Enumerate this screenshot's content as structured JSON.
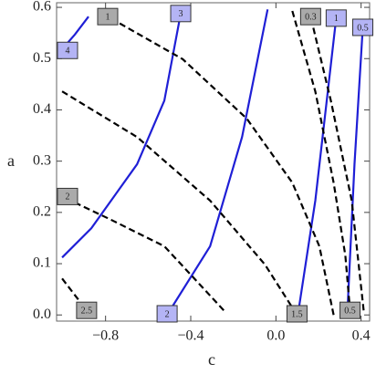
{
  "chart_data": {
    "type": "line",
    "xlabel": "c",
    "ylabel": "a",
    "xlim": [
      -1.03,
      0.44
    ],
    "ylim": [
      -0.012,
      0.609
    ],
    "xticks": [
      {
        "value": -0.8,
        "label": "−0.8"
      },
      {
        "value": -0.4,
        "label": "−0.4"
      },
      {
        "value": 0.0,
        "label": "0.0"
      },
      {
        "value": 0.4,
        "label": "0.4"
      }
    ],
    "yticks": [
      {
        "value": 0.0,
        "label": "0.0"
      },
      {
        "value": 0.1,
        "label": "0.1"
      },
      {
        "value": 0.2,
        "label": "0.2"
      },
      {
        "value": 0.3,
        "label": "0.3"
      },
      {
        "value": 0.4,
        "label": "0.4"
      },
      {
        "value": 0.5,
        "label": "0.5"
      },
      {
        "value": 0.6,
        "label": "0.6"
      }
    ],
    "series": [
      {
        "name": "4",
        "color": "#1f1fd6",
        "box_color": "#b4b4f5",
        "dashed": false,
        "x": [
          -0.88,
          -0.944,
          -1.009
        ],
        "values": [
          0.582,
          0.547,
          0.516
        ]
      },
      {
        "name": "3",
        "color": "#1f1fd6",
        "box_color": "#b4b4f5",
        "dashed": false,
        "x": [
          -1.004,
          -0.867,
          -0.652,
          -0.524,
          -0.447
        ],
        "values": [
          0.112,
          0.169,
          0.294,
          0.418,
          0.588
        ]
      },
      {
        "name": "2",
        "color": "#1f1fd6",
        "box_color": "#b4b4f5",
        "dashed": false,
        "x": [
          -0.039,
          -0.159,
          -0.309,
          -0.511
        ],
        "values": [
          0.596,
          0.347,
          0.134,
          0
        ]
      },
      {
        "name": "1",
        "color": "#1f1fd6",
        "box_color": "#b4b4f5",
        "dashed": false,
        "x": [
          0.103,
          0.185,
          0.283
        ],
        "values": [
          0,
          0.223,
          0.579
        ]
      },
      {
        "name": "0.5",
        "color": "#1f1fd6",
        "box_color": "#b4b4f5",
        "dashed": false,
        "x": [
          0.335,
          0.369,
          0.408
        ],
        "values": [
          0,
          0.294,
          0.561
        ]
      },
      {
        "name": "1",
        "color": "#000000",
        "box_color": "#aaaaaa",
        "dashed": true,
        "x": [
          0.271,
          0.204,
          0.077,
          -0.137,
          -0.438,
          -0.79
        ],
        "values": [
          0,
          0.134,
          0.258,
          0.383,
          0.499,
          0.582
        ]
      },
      {
        "name": "0.5",
        "color": "#000000",
        "box_color": "#aaaaaa",
        "dashed": true,
        "x": [
          0.077,
          0.185,
          0.271,
          0.326,
          0.348
        ],
        "values": [
          0.593,
          0.436,
          0.258,
          0.116,
          0.009
        ]
      },
      {
        "name": "0.3",
        "color": "#000000",
        "box_color": "#aaaaaa",
        "dashed": true,
        "x": [
          0.412,
          0.356,
          0.258,
          0.163
        ],
        "values": [
          0.009,
          0.223,
          0.418,
          0.582
        ]
      },
      {
        "name": "1.5",
        "color": "#000000",
        "box_color": "#aaaaaa",
        "dashed": true,
        "x": [
          -1.004,
          -0.652,
          -0.309,
          -0.051,
          0.099
        ],
        "values": [
          0.436,
          0.347,
          0.223,
          0.098,
          0
        ]
      },
      {
        "name": "2",
        "color": "#000000",
        "box_color": "#aaaaaa",
        "dashed": true,
        "x": [
          -0.245,
          -0.524,
          -0.781,
          -1.004
        ],
        "values": [
          0.009,
          0.134,
          0.187,
          0.231
        ]
      },
      {
        "name": "2.5",
        "color": "#000000",
        "box_color": "#aaaaaa",
        "dashed": true,
        "x": [
          -1.004,
          -0.889
        ],
        "values": [
          0.071,
          0.009
        ]
      }
    ]
  }
}
